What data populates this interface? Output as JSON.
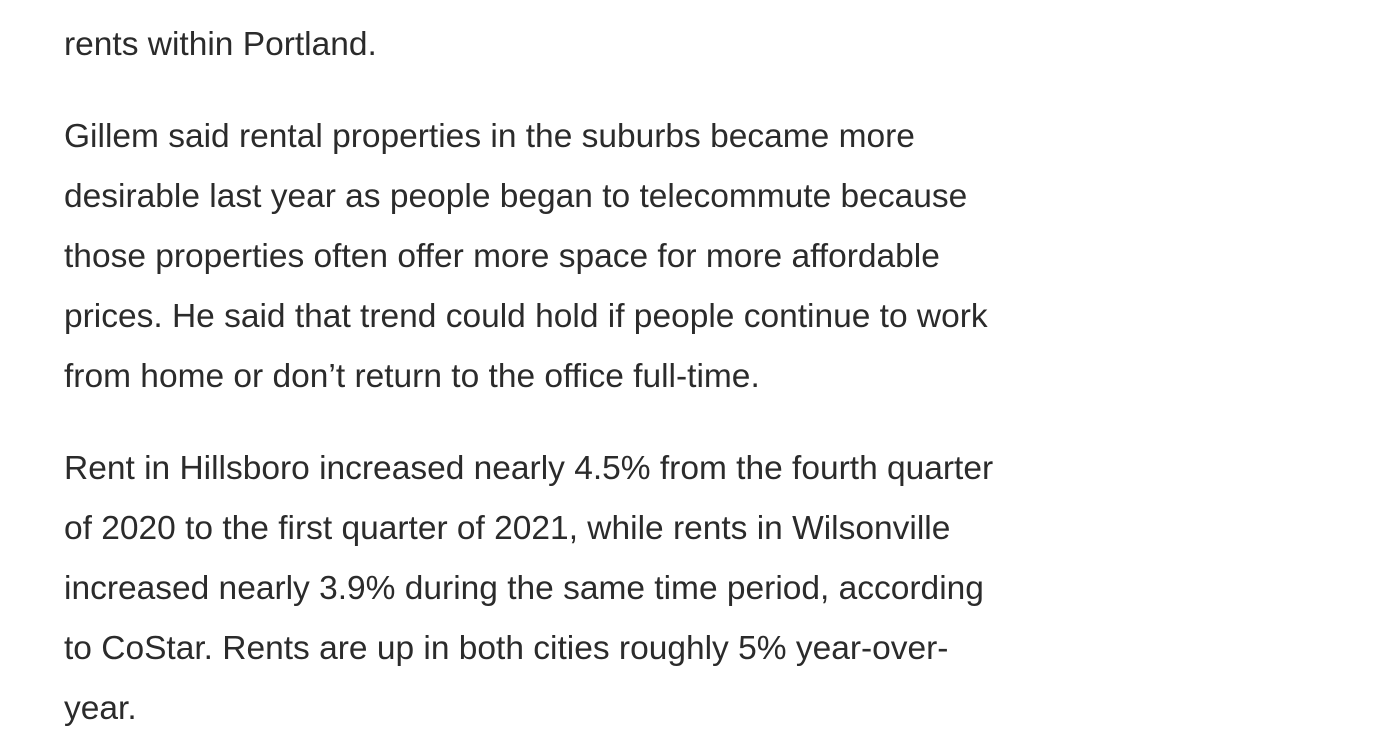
{
  "article": {
    "paragraphs": [
      {
        "lines": [
          "rents within Portland."
        ]
      },
      {
        "lines": [
          "Gillem said rental properties in the suburbs became more",
          "desirable last year as people began to telecommute because",
          "those properties often offer more space for more affordable",
          "prices. He said that trend could hold if people continue to work",
          "from home or don’t return to the office full-time."
        ]
      },
      {
        "lines": [
          "Rent in Hillsboro increased nearly 4.5% from the fourth quarter",
          "of 2020 to the first quarter of 2021, while rents in Wilsonville",
          "increased nearly 3.9% during the same time period, according",
          "to CoStar. Rents are up in both cities roughly 5% year-over-",
          "year."
        ]
      }
    ]
  }
}
